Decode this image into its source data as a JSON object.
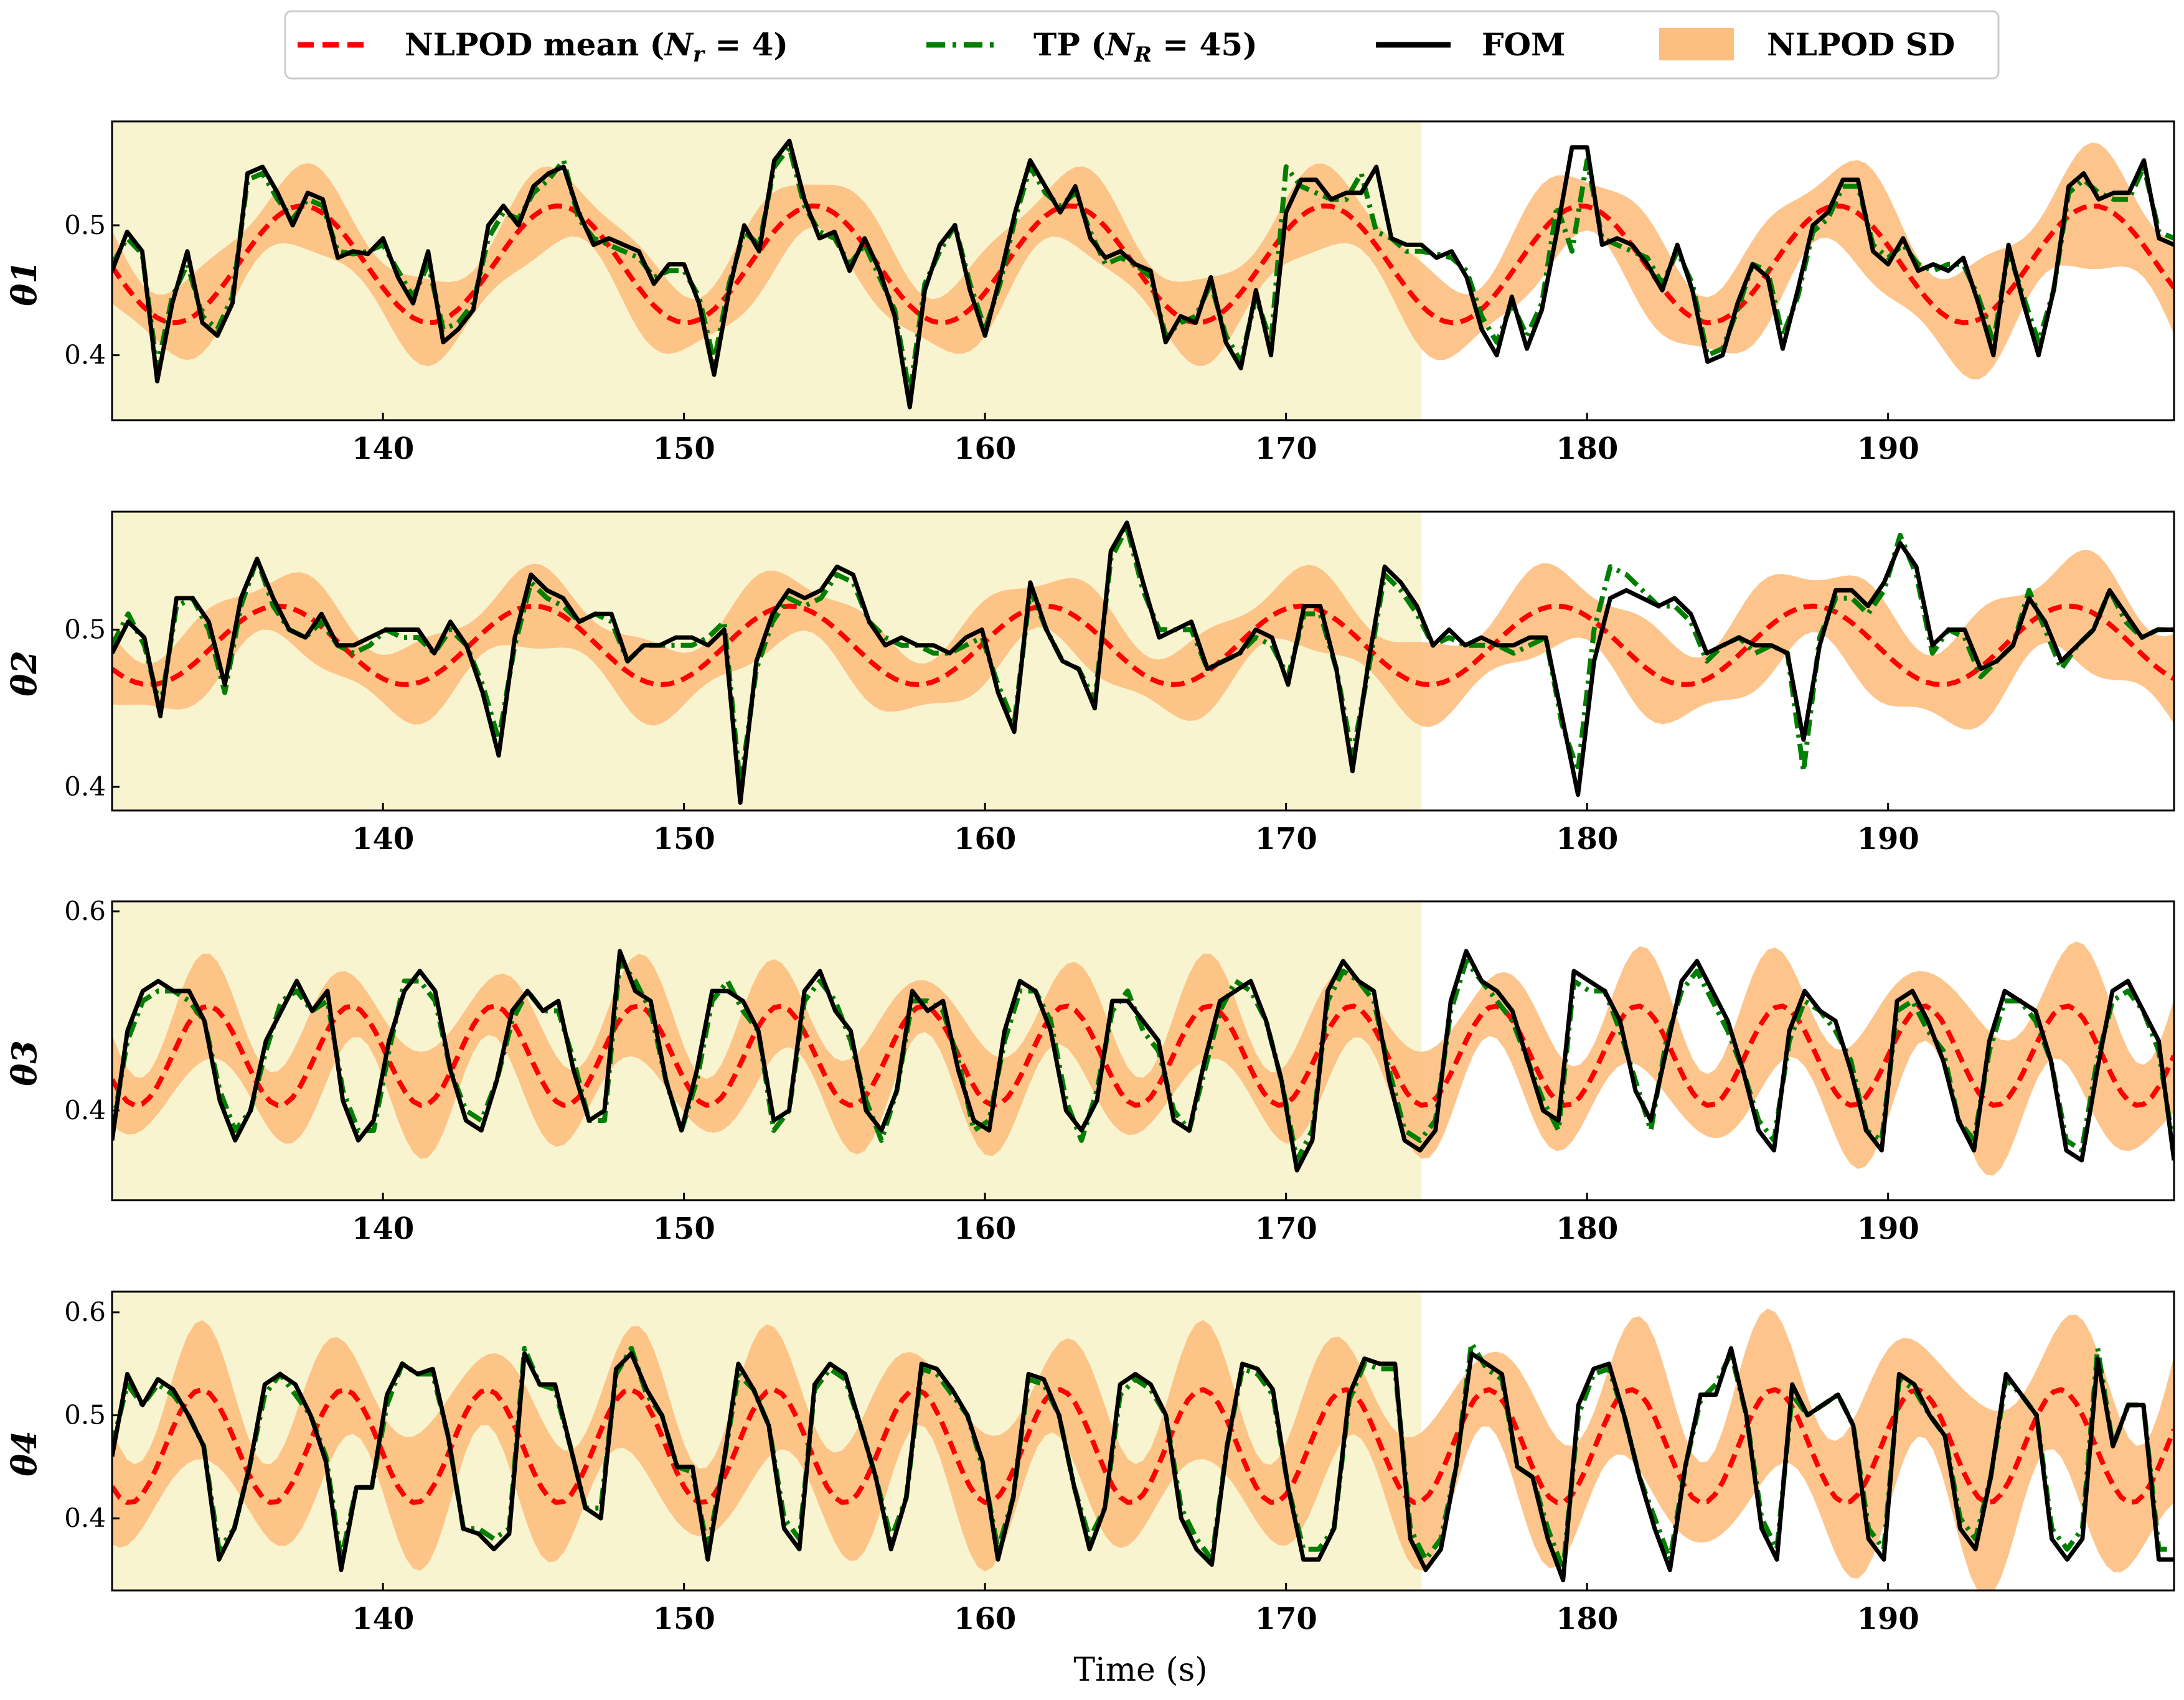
{
  "legend": {
    "nlpod_mean": "NLPOD mean (N_r = 4)",
    "tp": "TP (N_R = 45)",
    "fom": "FOM",
    "nlpod_sd": "NLPOD SD"
  },
  "colors": {
    "nlpod_mean": "#ff0000",
    "tp": "#007f00",
    "fom": "#000000",
    "sd": "#fdbf7f",
    "train_region": "#f8f4cf"
  },
  "chart_data": {
    "type": "line",
    "xlabel": "Time (s)",
    "xlim": [
      131,
      199.5
    ],
    "xticks": [
      140,
      150,
      160,
      170,
      180,
      190
    ],
    "training_region": [
      131,
      174.5
    ],
    "panels": [
      {
        "ylabel": "θ1",
        "ylim": [
          0.35,
          0.58
        ],
        "yticks": [
          0.4,
          0.5
        ],
        "fom": [
          0.465,
          0.495,
          0.48,
          0.38,
          0.44,
          0.48,
          0.425,
          0.415,
          0.44,
          0.54,
          0.545,
          0.525,
          0.5,
          0.525,
          0.52,
          0.475,
          0.48,
          0.478,
          0.49,
          0.46,
          0.44,
          0.48,
          0.41,
          0.42,
          0.435,
          0.5,
          0.515,
          0.5,
          0.53,
          0.54,
          0.545,
          0.51,
          0.485,
          0.49,
          0.485,
          0.48,
          0.455,
          0.47,
          0.47,
          0.44,
          0.385,
          0.45,
          0.5,
          0.48,
          0.55,
          0.565,
          0.52,
          0.49,
          0.495,
          0.465,
          0.49,
          0.465,
          0.43,
          0.36,
          0.45,
          0.485,
          0.5,
          0.45,
          0.415,
          0.46,
          0.51,
          0.55,
          0.53,
          0.51,
          0.53,
          0.49,
          0.475,
          0.48,
          0.47,
          0.465,
          0.41,
          0.43,
          0.425,
          0.46,
          0.41,
          0.39,
          0.45,
          0.4,
          0.51,
          0.535,
          0.535,
          0.52,
          0.525,
          0.525,
          0.545,
          0.49,
          0.485,
          0.485,
          0.475,
          0.48,
          0.46,
          0.42,
          0.4,
          0.445,
          0.405,
          0.435,
          0.495,
          0.56,
          0.56,
          0.485,
          0.49,
          0.485,
          0.47,
          0.45,
          0.485,
          0.45,
          0.395,
          0.4,
          0.44,
          0.47,
          0.46,
          0.405,
          0.45,
          0.5,
          0.51,
          0.535,
          0.535,
          0.48,
          0.47,
          0.49,
          0.465,
          0.47,
          0.465,
          0.475,
          0.44,
          0.4,
          0.485,
          0.44,
          0.4,
          0.45,
          0.53,
          0.54,
          0.52,
          0.525,
          0.525,
          0.55,
          0.49,
          0.485
        ],
        "tp": [
          0.47,
          0.49,
          0.478,
          0.39,
          0.445,
          0.47,
          0.43,
          0.42,
          0.445,
          0.535,
          0.54,
          0.52,
          0.505,
          0.52,
          0.515,
          0.48,
          0.478,
          0.48,
          0.485,
          0.465,
          0.445,
          0.47,
          0.42,
          0.425,
          0.44,
          0.49,
          0.51,
          0.505,
          0.525,
          0.535,
          0.55,
          0.505,
          0.49,
          0.485,
          0.48,
          0.475,
          0.46,
          0.465,
          0.465,
          0.445,
          0.395,
          0.455,
          0.495,
          0.485,
          0.545,
          0.56,
          0.515,
          0.495,
          0.49,
          0.47,
          0.485,
          0.46,
          0.435,
          0.37,
          0.455,
          0.48,
          0.5,
          0.455,
          0.42,
          0.455,
          0.505,
          0.545,
          0.525,
          0.515,
          0.525,
          0.495,
          0.47,
          0.475,
          0.47,
          0.46,
          0.415,
          0.425,
          0.43,
          0.455,
          0.415,
          0.395,
          0.445,
          0.41,
          0.545,
          0.53,
          0.525,
          0.52,
          0.52,
          0.54,
          0.495,
          0.49,
          0.48,
          0.48,
          0.478,
          0.475,
          0.465,
          0.43,
          0.41,
          0.44,
          0.415,
          0.44,
          0.515,
          0.48,
          0.55,
          0.49,
          0.485,
          0.48,
          0.475,
          0.455,
          0.48,
          0.455,
          0.4,
          0.405,
          0.435,
          0.47,
          0.465,
          0.415,
          0.445,
          0.495,
          0.505,
          0.53,
          0.53,
          0.485,
          0.475,
          0.485,
          0.47,
          0.465,
          0.47,
          0.47,
          0.445,
          0.41,
          0.48,
          0.445,
          0.41,
          0.45,
          0.525,
          0.535,
          0.525,
          0.52,
          0.52,
          0.545,
          0.495,
          0.49
        ],
        "mean_params": {
          "center": 0.47,
          "amp": 0.045,
          "period": 8.5,
          "phase": 0.6,
          "sd": 0.025
        }
      },
      {
        "ylabel": "θ2",
        "ylim": [
          0.385,
          0.575
        ],
        "yticks": [
          0.4,
          0.5
        ],
        "fom": [
          0.485,
          0.505,
          0.495,
          0.445,
          0.52,
          0.52,
          0.505,
          0.465,
          0.52,
          0.545,
          0.52,
          0.5,
          0.495,
          0.51,
          0.49,
          0.49,
          0.495,
          0.5,
          0.5,
          0.5,
          0.485,
          0.505,
          0.49,
          0.46,
          0.42,
          0.495,
          0.535,
          0.525,
          0.52,
          0.505,
          0.51,
          0.51,
          0.48,
          0.49,
          0.49,
          0.495,
          0.495,
          0.49,
          0.5,
          0.39,
          0.48,
          0.51,
          0.525,
          0.52,
          0.525,
          0.54,
          0.535,
          0.505,
          0.49,
          0.495,
          0.49,
          0.49,
          0.485,
          0.495,
          0.5,
          0.46,
          0.435,
          0.53,
          0.5,
          0.48,
          0.475,
          0.45,
          0.55,
          0.568,
          0.53,
          0.495,
          0.5,
          0.505,
          0.475,
          0.48,
          0.485,
          0.5,
          0.495,
          0.465,
          0.515,
          0.515,
          0.475,
          0.41,
          0.48,
          0.54,
          0.53,
          0.515,
          0.49,
          0.5,
          0.49,
          0.495,
          0.49,
          0.49,
          0.495,
          0.495,
          0.445,
          0.395,
          0.48,
          0.52,
          0.525,
          0.52,
          0.515,
          0.52,
          0.51,
          0.485,
          0.49,
          0.495,
          0.49,
          0.49,
          0.485,
          0.43,
          0.49,
          0.525,
          0.525,
          0.515,
          0.53,
          0.555,
          0.54,
          0.49,
          0.5,
          0.5,
          0.475,
          0.48,
          0.49,
          0.52,
          0.505,
          0.48,
          0.49,
          0.5,
          0.525,
          0.51,
          0.495,
          0.5,
          0.5
        ],
        "tp": [
          0.49,
          0.51,
          0.49,
          0.45,
          0.515,
          0.52,
          0.5,
          0.46,
          0.515,
          0.545,
          0.515,
          0.5,
          0.495,
          0.505,
          0.49,
          0.485,
          0.49,
          0.5,
          0.495,
          0.495,
          0.485,
          0.5,
          0.49,
          0.465,
          0.43,
          0.49,
          0.53,
          0.52,
          0.515,
          0.505,
          0.51,
          0.505,
          0.48,
          0.49,
          0.49,
          0.49,
          0.49,
          0.495,
          0.505,
          0.4,
          0.475,
          0.505,
          0.52,
          0.515,
          0.52,
          0.535,
          0.53,
          0.505,
          0.495,
          0.49,
          0.49,
          0.485,
          0.485,
          0.49,
          0.495,
          0.465,
          0.44,
          0.525,
          0.5,
          0.48,
          0.475,
          0.455,
          0.545,
          0.565,
          0.525,
          0.5,
          0.5,
          0.5,
          0.475,
          0.48,
          0.485,
          0.495,
          0.49,
          0.47,
          0.51,
          0.51,
          0.475,
          0.42,
          0.475,
          0.535,
          0.525,
          0.51,
          0.49,
          0.495,
          0.49,
          0.49,
          0.49,
          0.485,
          0.49,
          0.495,
          0.44,
          0.41,
          0.5,
          0.54,
          0.535,
          0.525,
          0.515,
          0.515,
          0.505,
          0.48,
          0.49,
          0.495,
          0.485,
          0.49,
          0.485,
          0.41,
          0.495,
          0.52,
          0.52,
          0.51,
          0.525,
          0.56,
          0.535,
          0.485,
          0.5,
          0.495,
          0.47,
          0.48,
          0.49,
          0.525,
          0.5,
          0.475,
          0.49,
          0.5,
          0.525,
          0.505,
          0.495,
          0.5,
          0.5
        ],
        "mean_params": {
          "center": 0.49,
          "amp": 0.025,
          "period": 8.5,
          "phase": 1.2,
          "sd": 0.02
        }
      },
      {
        "ylabel": "θ3",
        "ylim": [
          0.31,
          0.61
        ],
        "yticks": [
          0.4,
          0.6
        ],
        "fom": [
          0.37,
          0.48,
          0.52,
          0.53,
          0.52,
          0.52,
          0.49,
          0.41,
          0.37,
          0.4,
          0.47,
          0.5,
          0.53,
          0.5,
          0.52,
          0.41,
          0.37,
          0.39,
          0.47,
          0.52,
          0.54,
          0.52,
          0.44,
          0.39,
          0.38,
          0.43,
          0.5,
          0.52,
          0.5,
          0.51,
          0.44,
          0.39,
          0.4,
          0.56,
          0.52,
          0.51,
          0.43,
          0.38,
          0.44,
          0.52,
          0.52,
          0.51,
          0.48,
          0.39,
          0.4,
          0.52,
          0.54,
          0.5,
          0.48,
          0.4,
          0.38,
          0.42,
          0.52,
          0.5,
          0.51,
          0.44,
          0.39,
          0.38,
          0.48,
          0.53,
          0.52,
          0.48,
          0.4,
          0.38,
          0.41,
          0.51,
          0.51,
          0.49,
          0.47,
          0.39,
          0.38,
          0.45,
          0.51,
          0.52,
          0.53,
          0.49,
          0.43,
          0.34,
          0.37,
          0.52,
          0.55,
          0.53,
          0.52,
          0.43,
          0.37,
          0.36,
          0.38,
          0.51,
          0.56,
          0.53,
          0.52,
          0.5,
          0.45,
          0.4,
          0.39,
          0.54,
          0.53,
          0.52,
          0.49,
          0.42,
          0.39,
          0.46,
          0.53,
          0.55,
          0.52,
          0.49,
          0.44,
          0.38,
          0.36,
          0.48,
          0.52,
          0.5,
          0.49,
          0.44,
          0.38,
          0.36,
          0.51,
          0.52,
          0.49,
          0.45,
          0.39,
          0.36,
          0.47,
          0.52,
          0.51,
          0.5,
          0.45,
          0.36,
          0.35,
          0.44,
          0.52,
          0.53,
          0.5,
          0.47,
          0.35
        ],
        "tp": [
          0.38,
          0.47,
          0.51,
          0.52,
          0.52,
          0.51,
          0.49,
          0.42,
          0.38,
          0.4,
          0.46,
          0.51,
          0.52,
          0.5,
          0.51,
          0.42,
          0.38,
          0.38,
          0.46,
          0.53,
          0.53,
          0.51,
          0.44,
          0.4,
          0.39,
          0.43,
          0.49,
          0.52,
          0.5,
          0.5,
          0.45,
          0.39,
          0.39,
          0.55,
          0.53,
          0.5,
          0.43,
          0.38,
          0.43,
          0.51,
          0.53,
          0.5,
          0.48,
          0.38,
          0.4,
          0.51,
          0.53,
          0.51,
          0.47,
          0.41,
          0.37,
          0.42,
          0.51,
          0.51,
          0.5,
          0.45,
          0.38,
          0.39,
          0.47,
          0.52,
          0.52,
          0.49,
          0.41,
          0.37,
          0.42,
          0.5,
          0.52,
          0.48,
          0.46,
          0.4,
          0.38,
          0.44,
          0.5,
          0.53,
          0.52,
          0.49,
          0.43,
          0.35,
          0.38,
          0.51,
          0.54,
          0.53,
          0.51,
          0.44,
          0.38,
          0.37,
          0.39,
          0.5,
          0.55,
          0.53,
          0.51,
          0.49,
          0.45,
          0.41,
          0.38,
          0.53,
          0.52,
          0.52,
          0.48,
          0.43,
          0.38,
          0.47,
          0.52,
          0.54,
          0.51,
          0.48,
          0.44,
          0.39,
          0.37,
          0.47,
          0.51,
          0.5,
          0.48,
          0.45,
          0.38,
          0.37,
          0.5,
          0.51,
          0.48,
          0.46,
          0.39,
          0.37,
          0.46,
          0.51,
          0.51,
          0.49,
          0.45,
          0.37,
          0.36,
          0.45,
          0.51,
          0.52,
          0.5,
          0.46,
          0.36
        ],
        "mean_params": {
          "center": 0.455,
          "amp": 0.05,
          "period": 4.75,
          "phase": 0.0,
          "sd": 0.04
        }
      },
      {
        "ylabel": "θ4",
        "ylim": [
          0.33,
          0.62
        ],
        "yticks": [
          0.4,
          0.5,
          0.6
        ],
        "fom": [
          0.46,
          0.54,
          0.51,
          0.535,
          0.525,
          0.5,
          0.47,
          0.36,
          0.39,
          0.45,
          0.53,
          0.54,
          0.53,
          0.5,
          0.455,
          0.35,
          0.43,
          0.43,
          0.52,
          0.55,
          0.54,
          0.545,
          0.48,
          0.39,
          0.385,
          0.37,
          0.385,
          0.56,
          0.53,
          0.53,
          0.47,
          0.41,
          0.4,
          0.545,
          0.56,
          0.525,
          0.5,
          0.45,
          0.45,
          0.36,
          0.45,
          0.55,
          0.525,
          0.49,
          0.39,
          0.37,
          0.53,
          0.55,
          0.54,
          0.49,
          0.44,
          0.37,
          0.42,
          0.55,
          0.545,
          0.525,
          0.5,
          0.455,
          0.36,
          0.42,
          0.54,
          0.535,
          0.5,
          0.43,
          0.37,
          0.41,
          0.53,
          0.54,
          0.53,
          0.5,
          0.4,
          0.37,
          0.355,
          0.47,
          0.55,
          0.545,
          0.525,
          0.43,
          0.36,
          0.36,
          0.39,
          0.52,
          0.555,
          0.55,
          0.55,
          0.38,
          0.35,
          0.37,
          0.45,
          0.56,
          0.55,
          0.54,
          0.45,
          0.44,
          0.38,
          0.34,
          0.51,
          0.545,
          0.55,
          0.5,
          0.44,
          0.39,
          0.35,
          0.45,
          0.52,
          0.52,
          0.565,
          0.5,
          0.39,
          0.36,
          0.53,
          0.5,
          0.51,
          0.52,
          0.49,
          0.38,
          0.36,
          0.54,
          0.53,
          0.5,
          0.48,
          0.39,
          0.37,
          0.44,
          0.54,
          0.52,
          0.5,
          0.38,
          0.36,
          0.38,
          0.555,
          0.47,
          0.51,
          0.51,
          0.36,
          0.36
        ],
        "tp": [
          0.47,
          0.53,
          0.51,
          0.53,
          0.52,
          0.5,
          0.47,
          0.37,
          0.39,
          0.45,
          0.52,
          0.54,
          0.52,
          0.5,
          0.46,
          0.36,
          0.43,
          0.43,
          0.51,
          0.55,
          0.54,
          0.54,
          0.48,
          0.39,
          0.39,
          0.38,
          0.39,
          0.565,
          0.53,
          0.525,
          0.47,
          0.41,
          0.41,
          0.54,
          0.565,
          0.52,
          0.5,
          0.45,
          0.445,
          0.37,
          0.45,
          0.54,
          0.525,
          0.49,
          0.4,
          0.38,
          0.525,
          0.545,
          0.535,
          0.49,
          0.44,
          0.38,
          0.42,
          0.545,
          0.54,
          0.52,
          0.5,
          0.45,
          0.37,
          0.42,
          0.535,
          0.53,
          0.5,
          0.43,
          0.38,
          0.41,
          0.52,
          0.535,
          0.525,
          0.5,
          0.41,
          0.38,
          0.36,
          0.47,
          0.545,
          0.54,
          0.52,
          0.43,
          0.37,
          0.37,
          0.39,
          0.515,
          0.55,
          0.545,
          0.545,
          0.39,
          0.36,
          0.38,
          0.45,
          0.57,
          0.545,
          0.535,
          0.45,
          0.44,
          0.39,
          0.35,
          0.5,
          0.54,
          0.545,
          0.5,
          0.44,
          0.4,
          0.36,
          0.45,
          0.515,
          0.53,
          0.56,
          0.5,
          0.4,
          0.37,
          0.52,
          0.5,
          0.51,
          0.52,
          0.49,
          0.39,
          0.37,
          0.535,
          0.525,
          0.5,
          0.48,
          0.4,
          0.38,
          0.44,
          0.535,
          0.52,
          0.5,
          0.39,
          0.37,
          0.39,
          0.565,
          0.47,
          0.51,
          0.51,
          0.37,
          0.37
        ],
        "mean_params": {
          "center": 0.47,
          "amp": 0.055,
          "period": 4.75,
          "phase": 0.3,
          "sd": 0.05
        }
      }
    ]
  }
}
